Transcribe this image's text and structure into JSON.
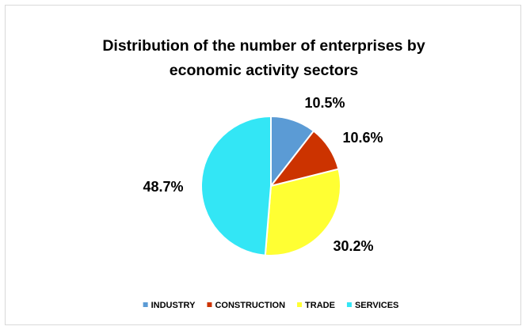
{
  "chart_data": {
    "type": "pie",
    "title_lines": [
      "Distribution of the number of enterprises by",
      "economic activity sectors"
    ],
    "categories": [
      "INDUSTRY",
      "CONSTRUCTION",
      "TRADE",
      "SERVICES"
    ],
    "values": [
      10.5,
      10.6,
      30.2,
      48.7
    ],
    "labels": [
      "10.5%",
      "10.6%",
      "30.2%",
      "48.7%"
    ],
    "colors": [
      "#5b9bd5",
      "#cc3300",
      "#ffff33",
      "#33e6f5"
    ],
    "legend_position": "bottom",
    "start_angle": "12 o'clock, clockwise"
  }
}
